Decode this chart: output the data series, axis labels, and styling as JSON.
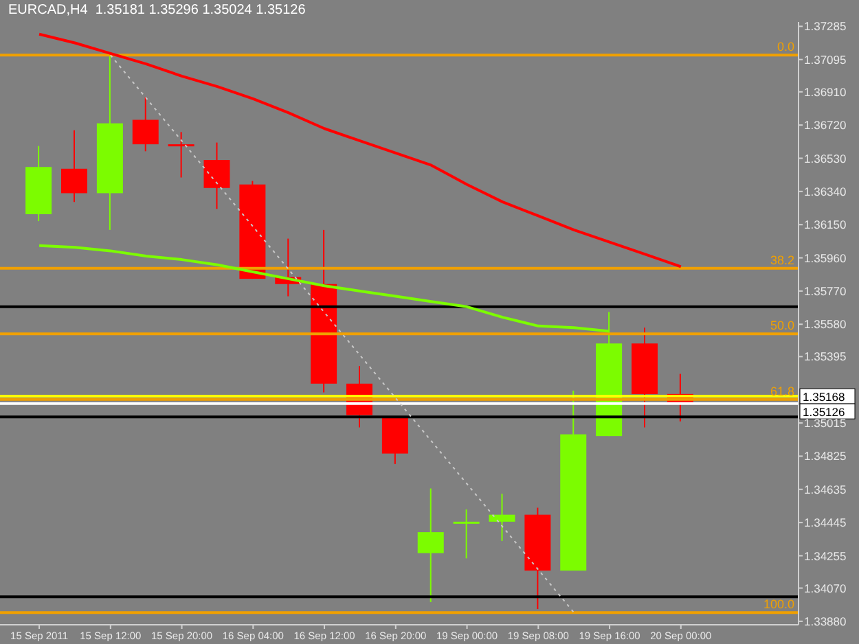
{
  "chart_data": {
    "type": "candlestick",
    "title": "EURCAD,H4  1.35181 1.35296 1.35024 1.35126",
    "categories": [
      "15 Sep 2011",
      null,
      "15 Sep 12:00",
      null,
      "15 Sep 20:00",
      null,
      "16 Sep 04:00",
      null,
      "16 Sep 12:00",
      null,
      "16 Sep 20:00",
      null,
      "19 Sep 00:00",
      null,
      "19 Sep 08:00",
      null,
      "19 Sep 16:00",
      null,
      "20 Sep 00:00"
    ],
    "ohlc": [
      [
        1.3621,
        1.366,
        1.3617,
        1.3648
      ],
      [
        1.3647,
        1.3669,
        1.3628,
        1.3633
      ],
      [
        1.3633,
        1.3712,
        1.3612,
        1.3673
      ],
      [
        1.3675,
        1.3688,
        1.3657,
        1.3661
      ],
      [
        1.3661,
        1.3668,
        1.3642,
        1.366
      ],
      [
        1.3652,
        1.3662,
        1.3624,
        1.3636
      ],
      [
        1.3638,
        1.364,
        1.3584,
        1.3584
      ],
      [
        1.3585,
        1.3607,
        1.3574,
        1.3581
      ],
      [
        1.3581,
        1.3612,
        1.3519,
        1.3524
      ],
      [
        1.3524,
        1.3534,
        1.3499,
        1.3506
      ],
      [
        1.3505,
        1.3505,
        1.3478,
        1.3484
      ],
      [
        1.3427,
        1.3464,
        1.3399,
        1.3439
      ],
      [
        1.3444,
        1.3452,
        1.3424,
        1.3445
      ],
      [
        1.3445,
        1.3461,
        1.3434,
        1.3449
      ],
      [
        1.3449,
        1.3453,
        1.3395,
        1.3417
      ],
      [
        1.3417,
        1.352,
        1.3417,
        1.3495
      ],
      [
        1.3494,
        1.3565,
        1.3494,
        1.3547
      ],
      [
        1.3547,
        1.3556,
        1.3499,
        1.3518
      ],
      [
        1.35181,
        1.35296,
        1.35024,
        1.35126
      ]
    ],
    "colors": [
      "#7cfc00",
      "#ff0000",
      "#7cfc00",
      "#ff0000",
      "#ff0000",
      "#ff0000",
      "#ff0000",
      "#ff0000",
      "#ff0000",
      "#ff0000",
      "#ff0000",
      "#7cfc00",
      "#7cfc00",
      "#7cfc00",
      "#ff0000",
      "#7cfc00",
      "#7cfc00",
      "#ff0000",
      "#ff0000"
    ],
    "series": [
      {
        "type": "line",
        "color": "#ff0000",
        "values": [
          1.3724,
          1.3719,
          1.3713,
          1.3707,
          1.37,
          1.3694,
          1.3687,
          1.3679,
          1.367,
          1.3663,
          1.3656,
          1.3649,
          1.3638,
          1.3628,
          1.362,
          1.3612,
          1.3605,
          1.3598,
          1.3591
        ]
      },
      {
        "type": "line",
        "color": "#7cfc00",
        "values": [
          1.3603,
          1.3602,
          1.36,
          1.3597,
          1.3595,
          1.3592,
          1.3588,
          1.3584,
          1.358,
          1.3577,
          1.3574,
          1.3571,
          1.3568,
          1.3562,
          1.3557,
          1.3556,
          1.3554,
          null,
          null
        ]
      },
      {
        "type": "line",
        "color": "#c8c8c8",
        "line_style": "dotted",
        "values": [
          null,
          null,
          1.3712,
          null,
          null,
          null,
          null,
          null,
          null,
          null,
          null,
          null,
          null,
          null,
          null,
          1.3393,
          null,
          null,
          null
        ]
      }
    ],
    "ylim": [
      1.3386,
      1.3731
    ],
    "yticks": [
      1.37285,
      1.37095,
      {
        "value": 1.3691,
        "label": "1.36910"
      },
      {
        "value": 1.3672,
        "label": "1.36720"
      },
      {
        "value": 1.3653,
        "label": "1.36530"
      },
      {
        "value": 1.3634,
        "label": "1.36340"
      },
      {
        "value": 1.3615,
        "label": "1.36150"
      },
      {
        "value": 1.3596,
        "label": "1.35960"
      },
      {
        "value": 1.3577,
        "label": "1.35770"
      },
      {
        "value": 1.3558,
        "label": "1.35580"
      },
      1.35395,
      1.35015,
      1.34825,
      1.34635,
      1.34445,
      1.34255,
      {
        "value": 1.3407,
        "label": "1.34070"
      },
      {
        "value": 1.3388,
        "label": "1.33880"
      }
    ],
    "ref_lines": [
      {
        "axis": "y",
        "value": 1.3712,
        "color": "#f0a000"
      },
      {
        "axis": "y",
        "value": 1.359,
        "color": "#f0a000"
      },
      {
        "axis": "y",
        "value": 1.35525,
        "color": "#f0a000"
      },
      {
        "axis": "y",
        "value": 1.3515,
        "color": "#f0a000"
      },
      {
        "axis": "y",
        "value": 1.3393,
        "color": "#f0a000"
      },
      {
        "axis": "y",
        "value": 1.3568,
        "color": "#000000"
      },
      {
        "axis": "y",
        "value": 1.3505,
        "color": "#000000"
      },
      {
        "axis": "y",
        "value": 1.3402,
        "color": "#000000"
      },
      {
        "axis": "y",
        "value": 1.35168,
        "label": "1.35168",
        "color": "#ffff00"
      },
      {
        "axis": "y",
        "value": 1.35126,
        "label": "1.35126",
        "color": "#ffffff"
      }
    ],
    "annotations": [
      {
        "text": "0.0",
        "y": 1.3712
      },
      {
        "text": "38.2",
        "y": 1.359
      },
      {
        "text": "50.0",
        "y": 1.35525
      },
      {
        "text": "61.8",
        "y": 1.3515
      },
      {
        "text": "100.0",
        "y": 1.3393
      }
    ]
  }
}
